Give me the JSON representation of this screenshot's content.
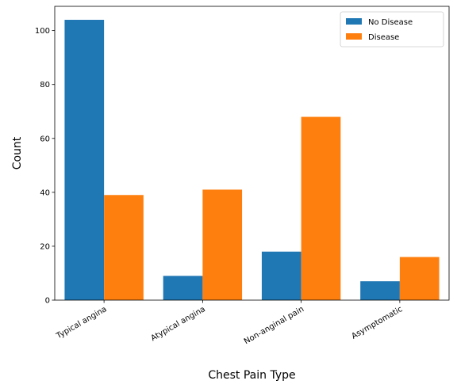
{
  "chart_data": {
    "type": "bar",
    "xlabel": "Chest Pain Type",
    "ylabel": "Count",
    "categories": [
      "Typical angina",
      "Atypical angina",
      "Non-anginal pain",
      "Asymptomatic"
    ],
    "series": [
      {
        "name": "No Disease",
        "values": [
          104,
          9,
          18,
          7
        ],
        "color": "#1f77b4"
      },
      {
        "name": "Disease",
        "values": [
          39,
          41,
          68,
          16
        ],
        "color": "#ff7f0e"
      }
    ],
    "ylim": [
      0,
      109
    ],
    "yticks": [
      0,
      20,
      40,
      60,
      80,
      100
    ],
    "grid": false,
    "legend_position": "top-right"
  }
}
